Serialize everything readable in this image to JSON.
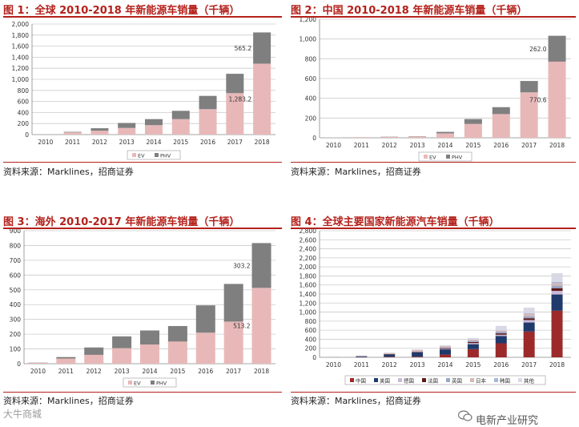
{
  "colors": {
    "title": "#b4211b",
    "ev": "#e8b8b8",
    "phv": "#7f7f7f",
    "grid": "#cccccc",
    "axis": "#888888"
  },
  "panels": [
    {
      "title": "图 1：全球 2010-2018 年新能源车销量（千辆）",
      "source": "资料来源：Marklines，招商证券"
    },
    {
      "title": "图 2：中国 2010-2018 年新能源车销量（千辆）",
      "source": "资料来源：Marklines，招商证券"
    },
    {
      "title": "图 3：海外 2010-2017 年新能源车销量（千辆）",
      "source": "资料来源：Marklines，招商证券"
    },
    {
      "title": "图 4：全球主要国家新能源汽车销量（千辆）",
      "source": "资料来源：Marklines，招商证券"
    }
  ],
  "watermark": {
    "left": "大牛商城",
    "right": "电新产业研究"
  },
  "chart_data": [
    {
      "type": "bar",
      "stacked": true,
      "categories": [
        "2010",
        "2011",
        "2012",
        "2013",
        "2014",
        "2015",
        "2016",
        "2017",
        "2018"
      ],
      "series": [
        {
          "name": "EV",
          "color": "#e8b8b8",
          "values": [
            5,
            40,
            70,
            120,
            170,
            280,
            460,
            750,
            1283.2
          ]
        },
        {
          "name": "PHV",
          "color": "#7f7f7f",
          "values": [
            2,
            10,
            45,
            90,
            110,
            150,
            240,
            350,
            565.2
          ]
        }
      ],
      "yticks": [
        "0",
        "200",
        "400",
        "600",
        "800",
        "1,000",
        "1,200",
        "1,400",
        "1,600",
        "1,800",
        "2,000"
      ],
      "ylim": [
        0,
        2000
      ],
      "grid": true,
      "legend": "bottom",
      "annotations": [
        {
          "series": 1,
          "index": 8,
          "text": "565.2"
        },
        {
          "series": 0,
          "index": 8,
          "text": "1,283.2"
        }
      ]
    },
    {
      "type": "bar",
      "stacked": true,
      "categories": [
        "2010",
        "2011",
        "2012",
        "2013",
        "2014",
        "2015",
        "2016",
        "2017",
        "2018"
      ],
      "series": [
        {
          "name": "EV",
          "color": "#e8b8b8",
          "values": [
            2,
            5,
            10,
            12,
            45,
            140,
            240,
            460,
            770.6
          ]
        },
        {
          "name": "PHV",
          "color": "#7f7f7f",
          "values": [
            0,
            1,
            2,
            3,
            15,
            50,
            70,
            115,
            262.0
          ]
        }
      ],
      "yticks": [
        "0",
        "200",
        "400",
        "600",
        "800",
        "1,000",
        "1,200"
      ],
      "ylim": [
        0,
        1200
      ],
      "grid": true,
      "legend": "bottom",
      "annotations": [
        {
          "series": 1,
          "index": 8,
          "text": "262.0"
        },
        {
          "series": 0,
          "index": 8,
          "text": "770.6"
        }
      ]
    },
    {
      "type": "bar",
      "stacked": true,
      "categories": [
        "2010",
        "2011",
        "2012",
        "2013",
        "2014",
        "2015",
        "2016",
        "2017",
        "2018"
      ],
      "series": [
        {
          "name": "EV",
          "color": "#e8b8b8",
          "values": [
            5,
            35,
            60,
            105,
            130,
            150,
            210,
            285,
            513.2
          ]
        },
        {
          "name": "PHV",
          "color": "#7f7f7f",
          "values": [
            2,
            10,
            50,
            80,
            95,
            105,
            185,
            255,
            303.2
          ]
        }
      ],
      "yticks": [
        "0",
        "100",
        "200",
        "300",
        "400",
        "500",
        "600",
        "700",
        "800",
        "900"
      ],
      "ylim": [
        0,
        900
      ],
      "grid": true,
      "legend": "bottom",
      "annotations": [
        {
          "series": 1,
          "index": 8,
          "text": "303.2"
        },
        {
          "series": 0,
          "index": 8,
          "text": "513.2"
        }
      ]
    },
    {
      "type": "bar",
      "stacked": true,
      "categories": [
        "2010",
        "2011",
        "2012",
        "2013",
        "2014",
        "2015",
        "2016",
        "2017",
        "2018"
      ],
      "series": [
        {
          "name": "中国",
          "color": "#9c2a2a",
          "values": [
            1,
            4,
            12,
            15,
            60,
            180,
            310,
            570,
            1030
          ]
        },
        {
          "name": "美国",
          "color": "#1f3a6b",
          "values": [
            1,
            15,
            50,
            95,
            115,
            110,
            160,
            200,
            360
          ]
        },
        {
          "name": "德国",
          "color": "#c9b9d6",
          "values": [
            0,
            2,
            3,
            6,
            12,
            25,
            30,
            55,
            80
          ]
        },
        {
          "name": "法国",
          "color": "#5c1a1a",
          "values": [
            1,
            2,
            8,
            10,
            15,
            25,
            30,
            40,
            60
          ]
        },
        {
          "name": "英国",
          "color": "#9aa8c4",
          "values": [
            0,
            1,
            2,
            3,
            15,
            25,
            35,
            45,
            60
          ]
        },
        {
          "name": "日本",
          "color": "#d6b8b8",
          "values": [
            2,
            10,
            20,
            30,
            30,
            25,
            25,
            55,
            50
          ]
        },
        {
          "name": "韩国",
          "color": "#a7b8d8",
          "values": [
            0,
            1,
            1,
            2,
            2,
            3,
            5,
            15,
            30
          ]
        },
        {
          "name": "其他",
          "color": "#d9d9e6",
          "values": [
            1,
            8,
            8,
            15,
            20,
            35,
            100,
            120,
            190
          ]
        }
      ],
      "yticks": [
        "0",
        "200",
        "400",
        "600",
        "800",
        "1,000",
        "1,200",
        "1,400",
        "1,600",
        "1,800",
        "2,000",
        "2,200",
        "2,400",
        "2,600",
        "2,800"
      ],
      "ylim": [
        0,
        2800
      ],
      "grid": true,
      "legend": "bottom"
    }
  ]
}
